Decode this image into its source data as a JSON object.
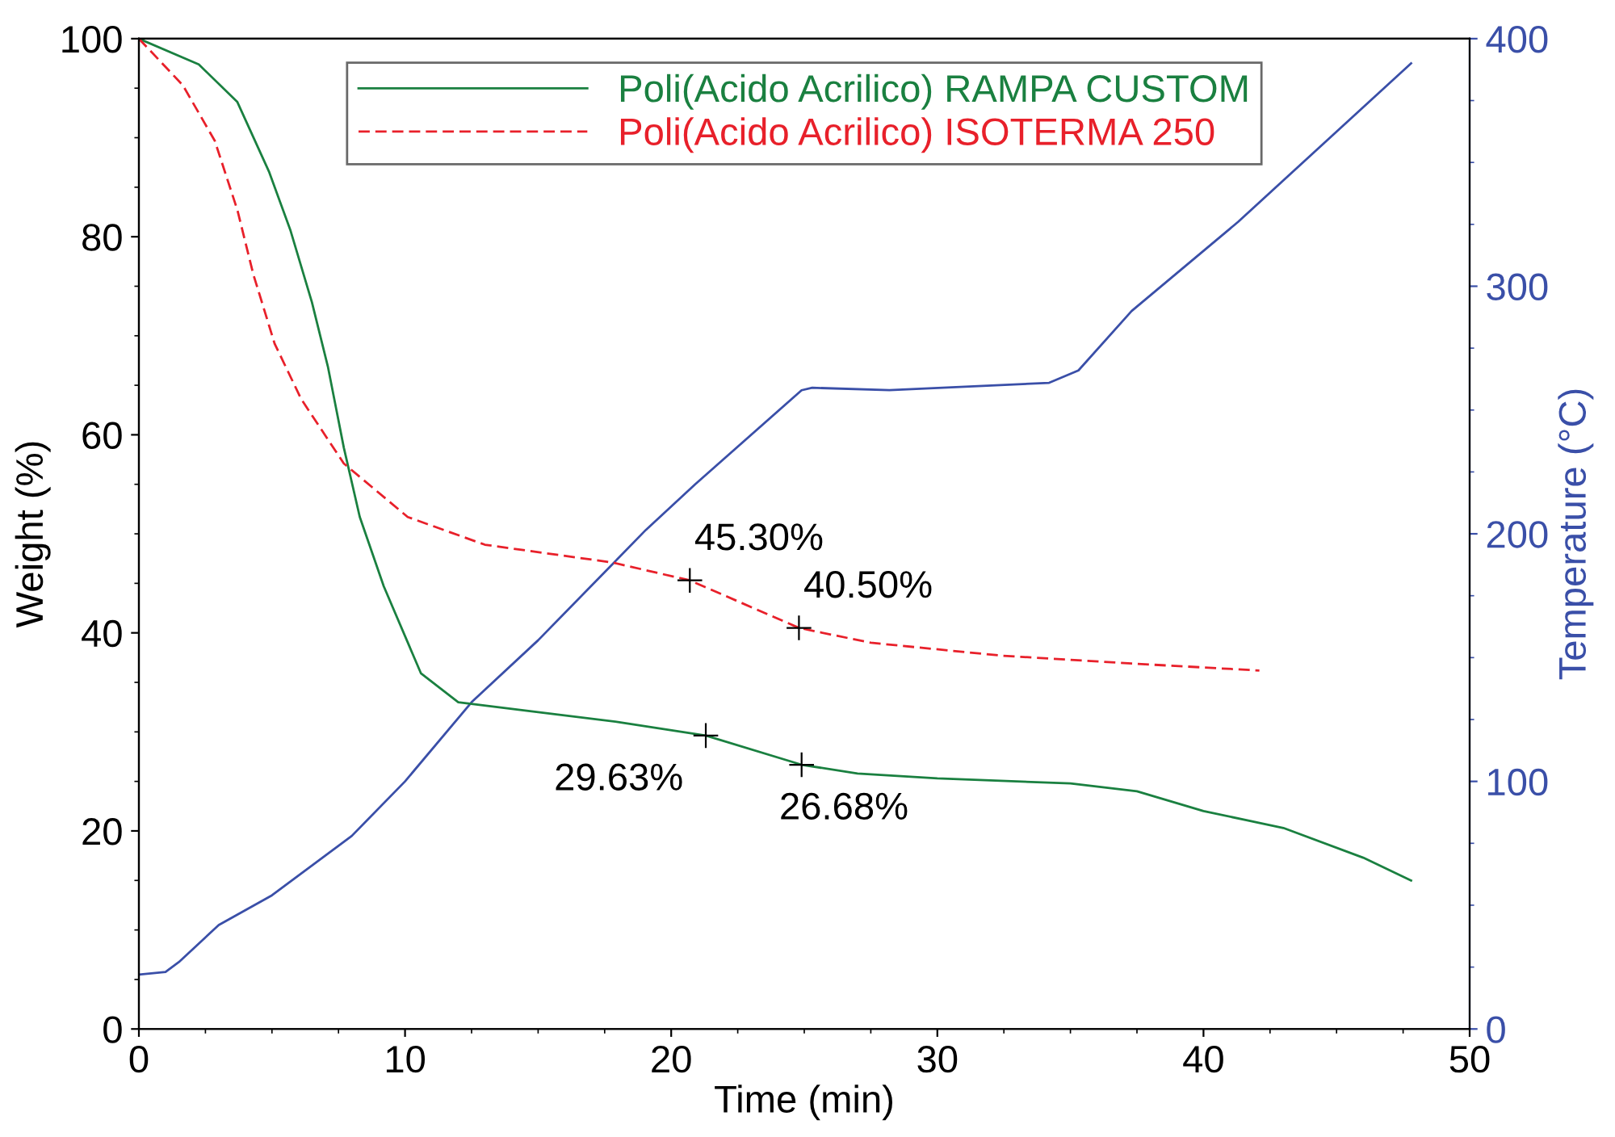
{
  "chart_data": {
    "type": "line",
    "xlabel": "Time (min)",
    "ylabel": "Weight (%)",
    "y2label": "Temperature (°C)",
    "xlim": [
      0,
      50
    ],
    "xticks": [
      0,
      10,
      20,
      30,
      40,
      50
    ],
    "ylim": [
      0,
      100
    ],
    "yticks": [
      0,
      20,
      40,
      60,
      80,
      100
    ],
    "y2lim": [
      0,
      400
    ],
    "y2ticks": [
      0,
      100,
      200,
      300,
      400
    ],
    "grid": false,
    "legend": "top",
    "marker": "none",
    "series": [
      {
        "name": "Poli(Acido Acrilico) RAMPA CUSTOM",
        "color": "#1a8040",
        "line_style": "solid",
        "x": [
          0,
          2.25,
          3.7,
          4.9,
          5.7,
          6.5,
          7.1,
          7.7,
          8.3,
          9.2,
          10.6,
          12,
          15,
          18,
          21.3,
          24.9,
          27,
          30,
          35,
          37.5,
          40,
          43,
          46,
          47.8
        ],
        "values": [
          100,
          97.4,
          93.6,
          86.5,
          80.6,
          73.4,
          66.9,
          58.7,
          51.7,
          44.7,
          35.9,
          33,
          32,
          31,
          29.63,
          26.68,
          25.8,
          25.3,
          24.8,
          24,
          22,
          20.3,
          17.3,
          15
        ]
      },
      {
        "name": "Poli(Acido Acrilico) ISOTERMA 250",
        "color": "#e8202a",
        "line_style": "dashed",
        "x": [
          0,
          1.65,
          2.85,
          3.7,
          4.3,
          5.1,
          6.1,
          7.7,
          10.1,
          13,
          17.8,
          20.7,
          24.8,
          27.5,
          32.4,
          37.3,
          42.1
        ],
        "values": [
          100,
          95.3,
          89.7,
          82.7,
          76.2,
          69.2,
          63.6,
          57.1,
          51.7,
          48.9,
          47.1,
          45.3,
          40.5,
          39,
          37.7,
          36.9,
          36.2
        ]
      },
      {
        "color": "#3a4fa8",
        "line_style": "solid",
        "axis": "y2",
        "x": [
          0,
          1,
          1.5,
          3,
          5,
          8,
          10,
          12.5,
          15,
          19.05,
          20.9,
          24.9,
          25.3,
          28.2,
          34.2,
          35.3,
          37.3,
          41.3,
          47.8
        ],
        "values": [
          22,
          23,
          27,
          42,
          54,
          78,
          100,
          132,
          157,
          201.6,
          220,
          258,
          259,
          258,
          261,
          266,
          290,
          326,
          390
        ]
      }
    ],
    "annotations": [
      {
        "text": "45.30%",
        "x": 20.7,
        "y": 45.3
      },
      {
        "text": "40.50%",
        "x": 24.8,
        "y": 40.5
      },
      {
        "text": "29.63%",
        "x": 21.3,
        "y": 29.63
      },
      {
        "text": "26.68%",
        "x": 24.9,
        "y": 26.68
      }
    ]
  }
}
